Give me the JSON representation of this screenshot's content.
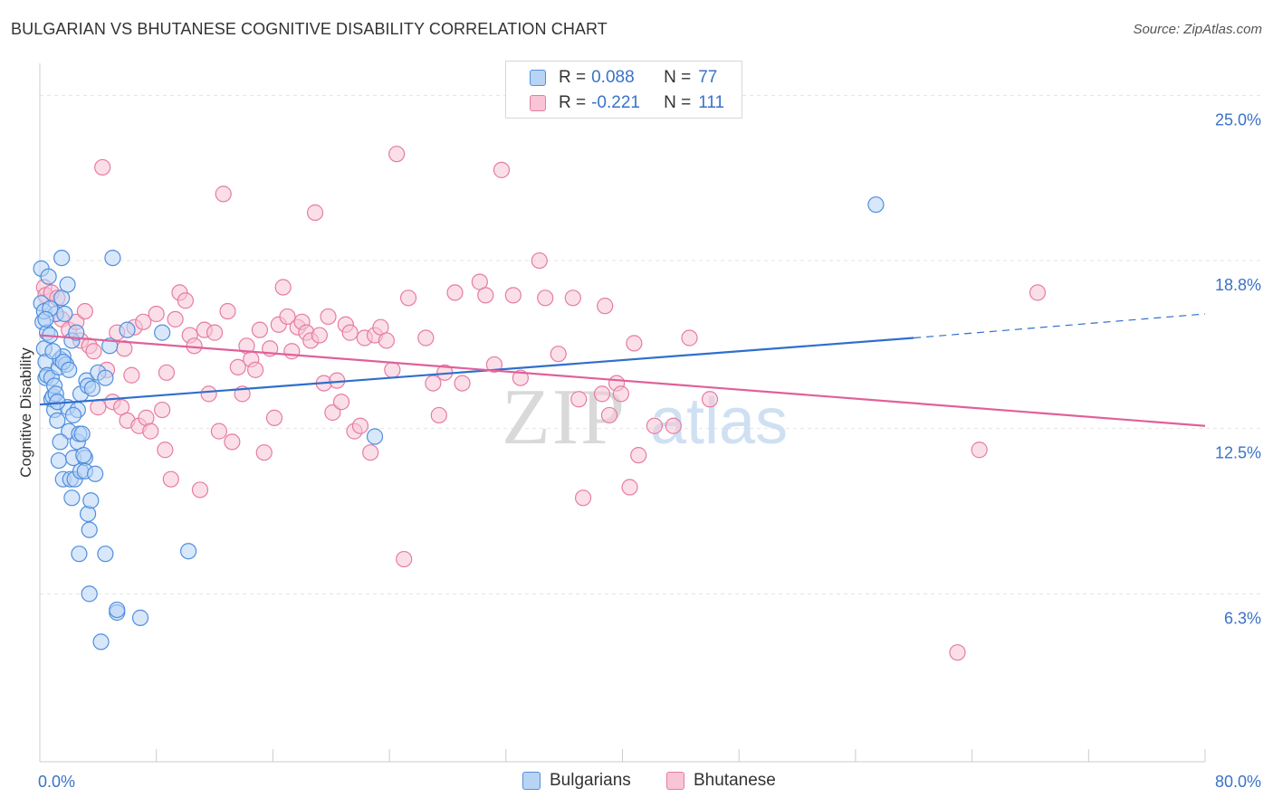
{
  "title": "BULGARIAN VS BHUTANESE COGNITIVE DISABILITY CORRELATION CHART",
  "source": "Source: ZipAtlas.com",
  "watermark": {
    "zip": "ZIP",
    "atlas": "atlas"
  },
  "legend": {
    "series": [
      {
        "r_label": "R =",
        "r_value": "0.088",
        "n_label": "N =",
        "n_value": "77"
      },
      {
        "r_label": "R =",
        "r_value": "-0.221",
        "n_label": "N =",
        "n_value": "111"
      }
    ]
  },
  "bottom_legend": {
    "bulgarians": "Bulgarians",
    "bhutanese": "Bhutanese"
  },
  "colors": {
    "blue_fill": "#b8d4f5",
    "blue_stroke": "#4f8fde",
    "blue_line": "#2f6fcc",
    "pink_fill": "#f7c5d6",
    "pink_stroke": "#e67ca2",
    "pink_line": "#e0609a",
    "tick_text": "#3a72c8",
    "grid": "#e4e4e4"
  },
  "chart_data": {
    "type": "scatter",
    "title": "BULGARIAN VS BHUTANESE COGNITIVE DISABILITY CORRELATION CHART",
    "xlabel": "",
    "ylabel": "Cognitive Disability",
    "xlim": [
      0,
      80
    ],
    "ylim": [
      0,
      26.2
    ],
    "x_tick_labels": [
      "0.0%",
      "80.0%"
    ],
    "y_ticks": [
      6.3,
      12.5,
      18.8,
      25.0
    ],
    "y_tick_labels": [
      "6.3%",
      "12.5%",
      "18.8%",
      "25.0%"
    ],
    "series": [
      {
        "name": "Bulgarians",
        "r": 0.088,
        "n": 77,
        "trend": {
          "x": [
            0,
            60
          ],
          "y": [
            13.4,
            15.9
          ],
          "dashed_to_x": 80,
          "dashed_to_y": 16.8
        },
        "points": [
          [
            0.1,
            18.5
          ],
          [
            0.1,
            17.2
          ],
          [
            0.2,
            16.5
          ],
          [
            0.3,
            16.9
          ],
          [
            0.3,
            15.5
          ],
          [
            0.4,
            15.0
          ],
          [
            0.4,
            14.4
          ],
          [
            0.5,
            16.1
          ],
          [
            0.5,
            14.5
          ],
          [
            0.6,
            18.2
          ],
          [
            0.7,
            16.0
          ],
          [
            0.8,
            13.6
          ],
          [
            0.8,
            14.4
          ],
          [
            0.9,
            13.7
          ],
          [
            1.0,
            14.1
          ],
          [
            1.0,
            13.2
          ],
          [
            1.1,
            16.8
          ],
          [
            1.1,
            13.8
          ],
          [
            1.2,
            12.8
          ],
          [
            1.3,
            11.3
          ],
          [
            1.3,
            14.8
          ],
          [
            1.4,
            15.1
          ],
          [
            1.5,
            18.9
          ],
          [
            1.5,
            17.4
          ],
          [
            1.6,
            10.6
          ],
          [
            1.6,
            15.2
          ],
          [
            1.7,
            16.8
          ],
          [
            1.8,
            14.9
          ],
          [
            1.9,
            13.3
          ],
          [
            1.9,
            17.9
          ],
          [
            2.0,
            12.4
          ],
          [
            2.1,
            10.6
          ],
          [
            2.2,
            9.9
          ],
          [
            2.2,
            15.8
          ],
          [
            2.3,
            11.4
          ],
          [
            2.4,
            10.6
          ],
          [
            2.6,
            12.0
          ],
          [
            2.6,
            13.2
          ],
          [
            2.7,
            7.8
          ],
          [
            2.7,
            12.3
          ],
          [
            2.8,
            10.9
          ],
          [
            2.8,
            13.8
          ],
          [
            2.9,
            12.3
          ],
          [
            3.1,
            11.4
          ],
          [
            3.1,
            10.9
          ],
          [
            3.2,
            14.3
          ],
          [
            3.3,
            14.1
          ],
          [
            3.3,
            9.3
          ],
          [
            3.4,
            8.7
          ],
          [
            3.4,
            6.3
          ],
          [
            3.5,
            9.8
          ],
          [
            3.6,
            14.0
          ],
          [
            3.8,
            10.8
          ],
          [
            4.0,
            14.6
          ],
          [
            4.2,
            4.5
          ],
          [
            4.5,
            14.4
          ],
          [
            4.8,
            15.6
          ],
          [
            5.0,
            18.9
          ],
          [
            4.5,
            7.8
          ],
          [
            5.3,
            5.6
          ],
          [
            5.3,
            5.7
          ],
          [
            6.0,
            16.2
          ],
          [
            6.9,
            5.4
          ],
          [
            8.4,
            16.1
          ],
          [
            10.2,
            7.9
          ],
          [
            23.0,
            12.2
          ],
          [
            57.4,
            20.9
          ],
          [
            1.6,
            15.0
          ],
          [
            2.5,
            16.1
          ],
          [
            0.9,
            15.4
          ],
          [
            1.2,
            13.5
          ],
          [
            2.0,
            14.7
          ],
          [
            3.0,
            11.5
          ],
          [
            0.7,
            17.0
          ],
          [
            1.4,
            12.0
          ],
          [
            2.3,
            13.0
          ],
          [
            0.4,
            16.6
          ]
        ]
      },
      {
        "name": "Bhutanese",
        "r": -0.221,
        "n": 111,
        "trend": {
          "x": [
            0,
            80
          ],
          "y": [
            16.0,
            12.6
          ]
        },
        "points": [
          [
            0.3,
            17.8
          ],
          [
            0.4,
            17.5
          ],
          [
            0.8,
            17.6
          ],
          [
            1.2,
            17.4
          ],
          [
            1.5,
            16.6
          ],
          [
            2.0,
            16.2
          ],
          [
            2.5,
            16.5
          ],
          [
            2.8,
            15.8
          ],
          [
            3.1,
            16.9
          ],
          [
            3.4,
            15.6
          ],
          [
            3.7,
            15.4
          ],
          [
            4.0,
            13.3
          ],
          [
            4.3,
            22.3
          ],
          [
            4.6,
            14.7
          ],
          [
            5.0,
            13.5
          ],
          [
            5.3,
            16.1
          ],
          [
            5.6,
            13.3
          ],
          [
            5.8,
            15.5
          ],
          [
            6.0,
            12.8
          ],
          [
            6.3,
            14.5
          ],
          [
            6.5,
            16.3
          ],
          [
            6.8,
            12.6
          ],
          [
            7.1,
            16.5
          ],
          [
            7.3,
            12.9
          ],
          [
            7.6,
            12.4
          ],
          [
            8.0,
            16.8
          ],
          [
            8.4,
            13.2
          ],
          [
            8.7,
            14.6
          ],
          [
            9.0,
            10.6
          ],
          [
            9.3,
            16.6
          ],
          [
            9.6,
            17.6
          ],
          [
            10.0,
            17.3
          ],
          [
            10.3,
            16.0
          ],
          [
            10.6,
            15.6
          ],
          [
            11.0,
            10.2
          ],
          [
            11.3,
            16.2
          ],
          [
            11.6,
            13.8
          ],
          [
            12.0,
            16.1
          ],
          [
            12.3,
            12.4
          ],
          [
            12.6,
            21.3
          ],
          [
            12.9,
            16.9
          ],
          [
            13.2,
            12.0
          ],
          [
            13.6,
            14.8
          ],
          [
            13.9,
            13.8
          ],
          [
            14.2,
            15.6
          ],
          [
            14.5,
            15.1
          ],
          [
            14.8,
            14.7
          ],
          [
            15.1,
            16.2
          ],
          [
            15.4,
            11.6
          ],
          [
            15.8,
            15.5
          ],
          [
            16.1,
            12.9
          ],
          [
            16.4,
            16.4
          ],
          [
            16.7,
            17.8
          ],
          [
            17.0,
            16.7
          ],
          [
            17.3,
            15.4
          ],
          [
            17.7,
            16.3
          ],
          [
            18.0,
            16.5
          ],
          [
            18.3,
            16.1
          ],
          [
            18.6,
            15.8
          ],
          [
            18.9,
            20.6
          ],
          [
            19.2,
            16.0
          ],
          [
            19.5,
            14.2
          ],
          [
            19.8,
            16.7
          ],
          [
            20.1,
            13.1
          ],
          [
            20.4,
            14.3
          ],
          [
            20.7,
            13.5
          ],
          [
            21.0,
            16.4
          ],
          [
            21.3,
            16.1
          ],
          [
            21.6,
            12.4
          ],
          [
            22.0,
            12.6
          ],
          [
            22.3,
            15.9
          ],
          [
            22.7,
            11.6
          ],
          [
            23.0,
            16.0
          ],
          [
            23.4,
            16.3
          ],
          [
            23.8,
            15.8
          ],
          [
            24.2,
            14.7
          ],
          [
            24.5,
            22.8
          ],
          [
            25.0,
            7.6
          ],
          [
            25.3,
            17.4
          ],
          [
            26.5,
            15.9
          ],
          [
            27.0,
            14.2
          ],
          [
            27.4,
            13.0
          ],
          [
            27.8,
            14.6
          ],
          [
            28.5,
            17.6
          ],
          [
            29.0,
            14.2
          ],
          [
            30.2,
            18.0
          ],
          [
            30.6,
            17.5
          ],
          [
            31.2,
            14.9
          ],
          [
            31.7,
            22.2
          ],
          [
            32.5,
            17.5
          ],
          [
            33.0,
            14.4
          ],
          [
            34.3,
            18.8
          ],
          [
            34.7,
            17.4
          ],
          [
            35.6,
            15.3
          ],
          [
            36.6,
            17.4
          ],
          [
            37.0,
            13.6
          ],
          [
            37.3,
            9.9
          ],
          [
            38.6,
            13.8
          ],
          [
            38.8,
            17.1
          ],
          [
            39.1,
            13.0
          ],
          [
            39.6,
            14.2
          ],
          [
            39.9,
            13.8
          ],
          [
            40.5,
            10.3
          ],
          [
            40.8,
            15.7
          ],
          [
            41.1,
            11.5
          ],
          [
            42.2,
            12.6
          ],
          [
            43.5,
            12.6
          ],
          [
            44.6,
            15.9
          ],
          [
            46.0,
            13.6
          ],
          [
            63.0,
            4.1
          ],
          [
            64.5,
            11.7
          ],
          [
            68.5,
            17.6
          ],
          [
            8.6,
            11.7
          ]
        ]
      }
    ]
  }
}
